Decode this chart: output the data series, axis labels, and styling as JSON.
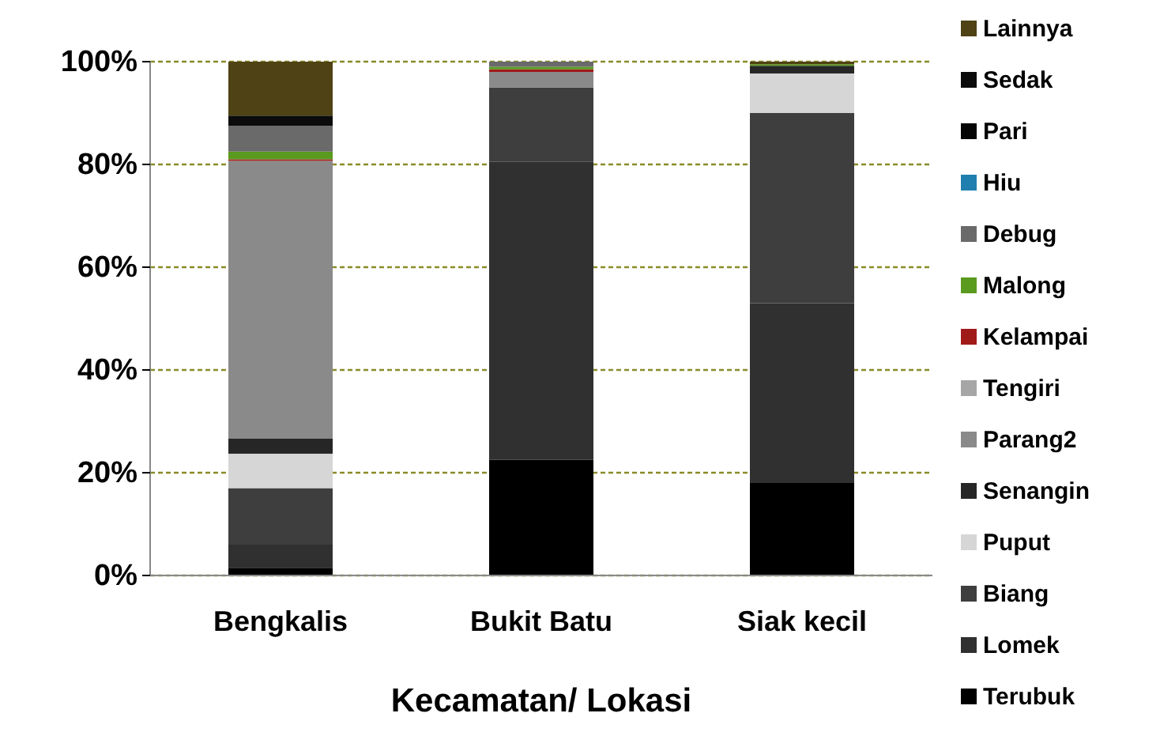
{
  "chart_data": {
    "type": "bar",
    "stacked": true,
    "xlabel": "Kecamatan/ Lokasi",
    "categories": [
      "Bengkalis",
      "Bukit Batu",
      "Siak kecil"
    ],
    "ylim": [
      0,
      100
    ],
    "yticks": [
      {
        "value": 0,
        "label": "0%"
      },
      {
        "value": 20,
        "label": "20%"
      },
      {
        "value": 40,
        "label": "40%"
      },
      {
        "value": 60,
        "label": "60%"
      },
      {
        "value": 80,
        "label": "80%"
      },
      {
        "value": 100,
        "label": "100%"
      }
    ],
    "grid": "y",
    "legend": "right",
    "series": [
      {
        "name": "Terubuk",
        "color": "#000000",
        "values": [
          1.5,
          22.5,
          18
        ]
      },
      {
        "name": "Lomek",
        "color": "#303030",
        "values": [
          4.5,
          58,
          35
        ]
      },
      {
        "name": "Biang",
        "color": "#3e3e3e",
        "values": [
          11,
          14.5,
          37
        ]
      },
      {
        "name": "Puput",
        "color": "#d6d6d6",
        "values": [
          6.7,
          0,
          7.7
        ]
      },
      {
        "name": "Senangin",
        "color": "#262626",
        "values": [
          3,
          0,
          1.5
        ]
      },
      {
        "name": "Parang2",
        "color": "#8a8a8a",
        "values": [
          54,
          3,
          0
        ]
      },
      {
        "name": "Tengiri",
        "color": "#a6a6a6",
        "values": [
          null,
          0,
          0
        ]
      },
      {
        "name": "Kelampai",
        "color": "#a01a1a",
        "values": [
          0.3,
          0.5,
          0
        ]
      },
      {
        "name": "Malong",
        "color": "#5a9a1e",
        "values": [
          1.5,
          0.5,
          0.3
        ]
      },
      {
        "name": "Debug",
        "color": "#6a6a6a",
        "values": [
          5,
          1,
          0
        ]
      },
      {
        "name": "Hiu",
        "color": "#1f7fae",
        "values": [
          0,
          0,
          0
        ]
      },
      {
        "name": "Pari",
        "color": "#050505",
        "values": [
          0,
          0,
          0
        ]
      },
      {
        "name": "Sedak",
        "color": "#0b0b0b",
        "values": [
          2,
          0,
          0
        ]
      },
      {
        "name": "Lainnya",
        "color": "#4f4214",
        "values": [
          10.5,
          0,
          0.5
        ]
      }
    ]
  }
}
